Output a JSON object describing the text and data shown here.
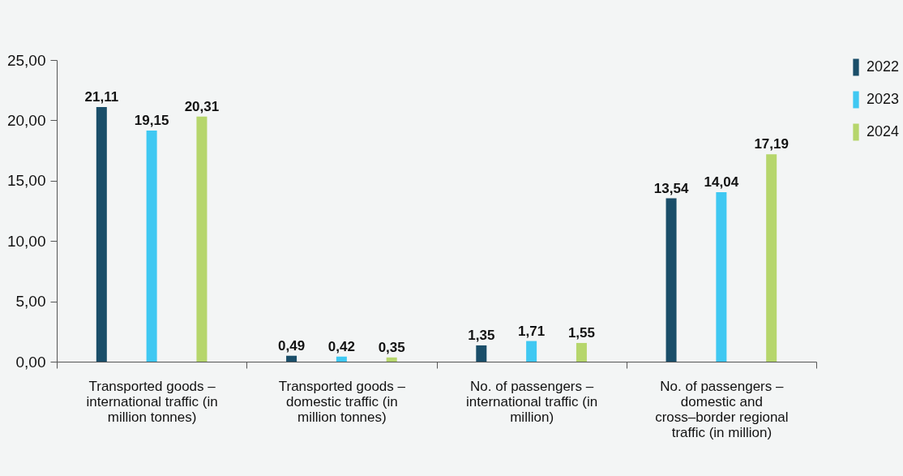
{
  "chart_data": {
    "type": "bar",
    "categories": [
      "Transported goods – international traffic (in million tonnes)",
      "Transported goods – domestic traffic (in million tonnes)",
      "No. of passengers – international traffic (in million)",
      "No. of passengers – domestic and cross–border regional traffic (in million)"
    ],
    "series": [
      {
        "name": "2022",
        "color": "#1a4e69",
        "values": [
          21.11,
          0.49,
          1.35,
          13.54
        ]
      },
      {
        "name": "2023",
        "color": "#3fc8f2",
        "values": [
          19.15,
          0.42,
          1.71,
          14.04
        ]
      },
      {
        "name": "2024",
        "color": "#b6d66c",
        "values": [
          20.31,
          0.35,
          1.55,
          17.19
        ]
      }
    ],
    "ylim": [
      0,
      25
    ],
    "yticks": [
      {
        "value": 0,
        "label": "0,00"
      },
      {
        "value": 5,
        "label": "5,00"
      },
      {
        "value": 10,
        "label": "10,00"
      },
      {
        "value": 15,
        "label": "15,00"
      },
      {
        "value": 20,
        "label": "20,00"
      },
      {
        "value": 25,
        "label": "25,00"
      }
    ],
    "value_labels": [
      [
        "21,11",
        "0,49",
        "1,35",
        "13,54"
      ],
      [
        "19,15",
        "0,42",
        "1,71",
        "14,04"
      ],
      [
        "20,31",
        "0,35",
        "1,55",
        "17,19"
      ]
    ],
    "grid": false,
    "legend": "top right"
  }
}
